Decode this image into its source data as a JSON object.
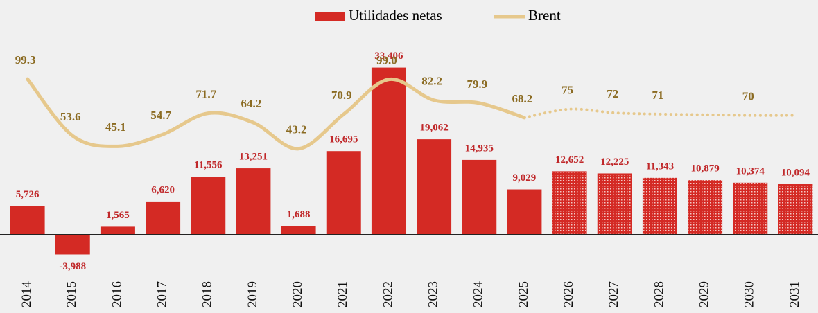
{
  "chart_data": {
    "type": "combo",
    "categories": [
      "2014",
      "2015",
      "2016",
      "2017",
      "2018",
      "2019",
      "2020",
      "2021",
      "2022",
      "2023",
      "2024",
      "2025",
      "2026",
      "2027",
      "2028",
      "2029",
      "2030",
      "2031"
    ],
    "forecast_start": "2026",
    "ylim": [
      -6000,
      40000
    ],
    "y2lim": [
      -50,
      135
    ],
    "series": [
      {
        "name": "Utilidades netas",
        "type": "bar",
        "color": "#d42a24",
        "label_color": "#c0282a",
        "values": [
          5726,
          -3988,
          1565,
          6620,
          11556,
          13251,
          1688,
          16695,
          33406,
          19062,
          14935,
          9029,
          12652,
          12225,
          11343,
          10879,
          10374,
          10094
        ],
        "value_labels": [
          "5,726",
          "-3,988",
          "1,565",
          "6,620",
          "11,556",
          "13,251",
          "1,688",
          "16,695",
          "33,406",
          "19,062",
          "14,935",
          "9,029",
          "12,652",
          "12,225",
          "11,343",
          "10,879",
          "10,374",
          "10,094"
        ]
      },
      {
        "name": "Brent",
        "type": "line",
        "axis": "y2",
        "color": "#e6c88c",
        "label_color": "#8b6b22",
        "values": [
          99.3,
          53.6,
          45.1,
          54.7,
          71.7,
          64.2,
          43.2,
          70.9,
          99.0,
          82.2,
          79.9,
          68.2,
          75,
          72,
          71,
          70.5,
          70,
          70
        ],
        "value_labels": [
          "99.3",
          "53.6",
          "45.1",
          "54.7",
          "71.7",
          "64.2",
          "43.2",
          "70.9",
          "99.0",
          "82.2",
          "79.9",
          "68.2",
          "75",
          "72",
          "71",
          null,
          "70",
          null
        ]
      }
    ]
  }
}
